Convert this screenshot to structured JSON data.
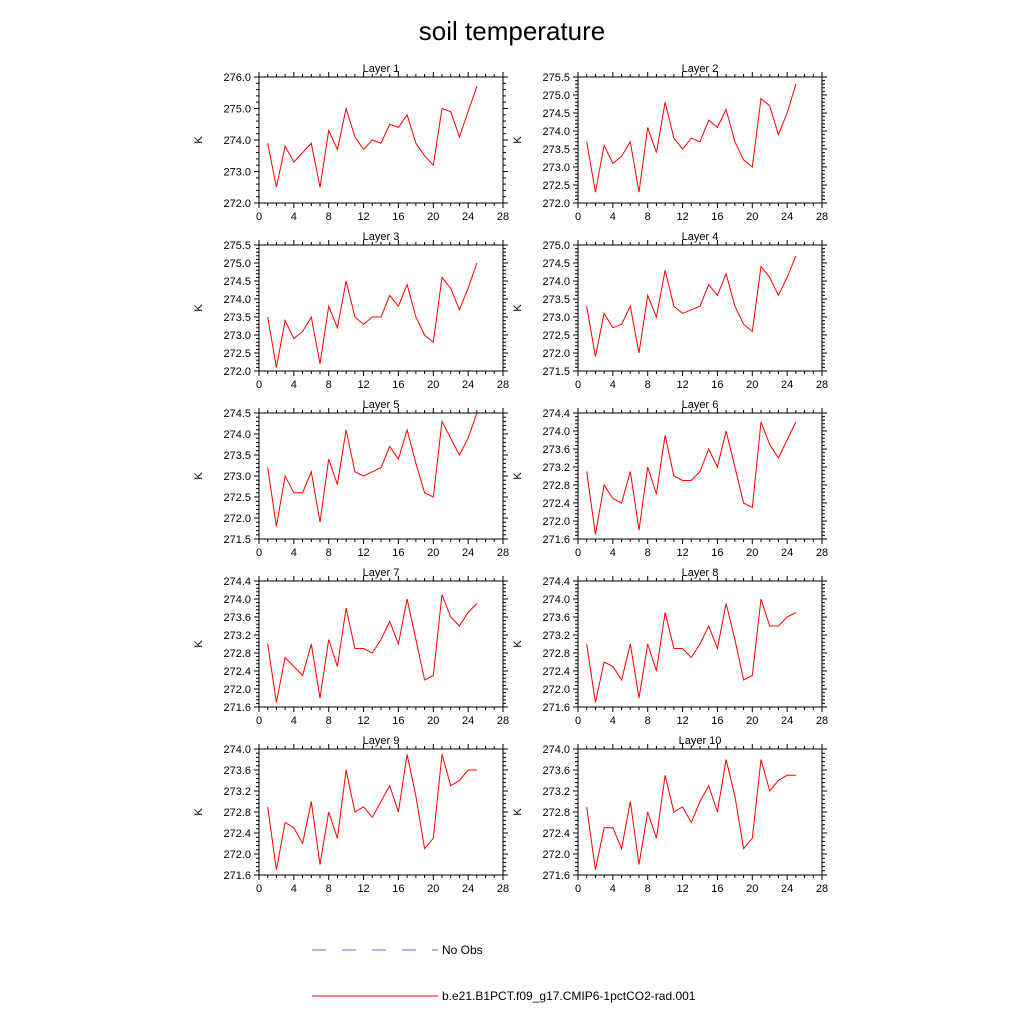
{
  "title": "soil temperature",
  "legend": {
    "placement": "bottom",
    "items": [
      {
        "label": "No Obs",
        "color": "#6b6bd6",
        "style": "dashed"
      },
      {
        "label": "b.e21.B1PCT.f09_g17.CMIP6-1pctCO2-rad.001",
        "color": "#ff0000",
        "style": "solid"
      }
    ]
  },
  "colors": {
    "series": "#ff0000",
    "no_obs": "#6b6bd6"
  },
  "chart_data": [
    {
      "type": "line",
      "title": "Layer 1",
      "ylabel": "K",
      "xlim": [
        0,
        28
      ],
      "ylim": [
        272.0,
        276.0
      ],
      "xticks": [
        0,
        4,
        8,
        12,
        16,
        20,
        24,
        28
      ],
      "yticks": [
        272.0,
        273.0,
        274.0,
        275.0,
        276.0
      ],
      "yfmt": 1,
      "series": [
        {
          "name": "b.e21.B1PCT.f09_g17.CMIP6-1pctCO2-rad.001",
          "x": [
            1,
            2,
            3,
            4,
            5,
            6,
            7,
            8,
            9,
            10,
            11,
            12,
            13,
            14,
            15,
            16,
            17,
            18,
            19,
            20,
            21,
            22,
            23,
            24,
            25
          ],
          "y": [
            273.9,
            272.5,
            273.8,
            273.3,
            273.6,
            273.9,
            272.5,
            274.3,
            273.7,
            275.0,
            274.1,
            273.7,
            274.0,
            273.9,
            274.5,
            274.4,
            274.8,
            273.9,
            273.5,
            273.2,
            275.0,
            274.9,
            274.1,
            274.9,
            275.7
          ]
        }
      ]
    },
    {
      "type": "line",
      "title": "Layer 2",
      "ylabel": "K",
      "xlim": [
        0,
        28
      ],
      "ylim": [
        272.0,
        275.5
      ],
      "xticks": [
        0,
        4,
        8,
        12,
        16,
        20,
        24,
        28
      ],
      "yticks": [
        272.0,
        272.5,
        273.0,
        273.5,
        274.0,
        274.5,
        275.0,
        275.5
      ],
      "yfmt": 1,
      "series": [
        {
          "name": "b.e21.B1PCT.f09_g17.CMIP6-1pctCO2-rad.001",
          "x": [
            1,
            2,
            3,
            4,
            5,
            6,
            7,
            8,
            9,
            10,
            11,
            12,
            13,
            14,
            15,
            16,
            17,
            18,
            19,
            20,
            21,
            22,
            23,
            24,
            25
          ],
          "y": [
            273.7,
            272.3,
            273.6,
            273.1,
            273.3,
            273.7,
            272.3,
            274.1,
            273.4,
            274.8,
            273.8,
            273.5,
            273.8,
            273.7,
            274.3,
            274.1,
            274.6,
            273.7,
            273.2,
            273.0,
            274.9,
            274.7,
            273.9,
            274.5,
            275.3
          ]
        }
      ]
    },
    {
      "type": "line",
      "title": "Layer 3",
      "ylabel": "K",
      "xlim": [
        0,
        28
      ],
      "ylim": [
        272.0,
        275.5
      ],
      "xticks": [
        0,
        4,
        8,
        12,
        16,
        20,
        24,
        28
      ],
      "yticks": [
        272.0,
        272.5,
        273.0,
        273.5,
        274.0,
        274.5,
        275.0,
        275.5
      ],
      "yfmt": 1,
      "series": [
        {
          "name": "b.e21.B1PCT.f09_g17.CMIP6-1pctCO2-rad.001",
          "x": [
            1,
            2,
            3,
            4,
            5,
            6,
            7,
            8,
            9,
            10,
            11,
            12,
            13,
            14,
            15,
            16,
            17,
            18,
            19,
            20,
            21,
            22,
            23,
            24,
            25
          ],
          "y": [
            273.5,
            272.1,
            273.4,
            272.9,
            273.1,
            273.5,
            272.2,
            273.8,
            273.2,
            274.5,
            273.5,
            273.3,
            273.5,
            273.5,
            274.1,
            273.8,
            274.4,
            273.5,
            273.0,
            272.8,
            274.6,
            274.3,
            273.7,
            274.3,
            275.0
          ]
        }
      ]
    },
    {
      "type": "line",
      "title": "Layer 4",
      "ylabel": "K",
      "xlim": [
        0,
        28
      ],
      "ylim": [
        271.5,
        275.0
      ],
      "xticks": [
        0,
        4,
        8,
        12,
        16,
        20,
        24,
        28
      ],
      "yticks": [
        271.5,
        272.0,
        272.5,
        273.0,
        273.5,
        274.0,
        274.5,
        275.0
      ],
      "yfmt": 1,
      "series": [
        {
          "name": "b.e21.B1PCT.f09_g17.CMIP6-1pctCO2-rad.001",
          "x": [
            1,
            2,
            3,
            4,
            5,
            6,
            7,
            8,
            9,
            10,
            11,
            12,
            13,
            14,
            15,
            16,
            17,
            18,
            19,
            20,
            21,
            22,
            23,
            24,
            25
          ],
          "y": [
            273.3,
            271.9,
            273.1,
            272.7,
            272.8,
            273.3,
            272.0,
            273.6,
            273.0,
            274.3,
            273.3,
            273.1,
            273.2,
            273.3,
            273.9,
            273.6,
            274.2,
            273.3,
            272.8,
            272.6,
            274.4,
            274.1,
            273.6,
            274.1,
            274.7
          ]
        }
      ]
    },
    {
      "type": "line",
      "title": "Layer 5",
      "ylabel": "K",
      "xlim": [
        0,
        28
      ],
      "ylim": [
        271.5,
        274.5
      ],
      "xticks": [
        0,
        4,
        8,
        12,
        16,
        20,
        24,
        28
      ],
      "yticks": [
        271.5,
        272.0,
        272.5,
        273.0,
        273.5,
        274.0,
        274.5
      ],
      "yfmt": 1,
      "series": [
        {
          "name": "b.e21.B1PCT.f09_g17.CMIP6-1pctCO2-rad.001",
          "x": [
            1,
            2,
            3,
            4,
            5,
            6,
            7,
            8,
            9,
            10,
            11,
            12,
            13,
            14,
            15,
            16,
            17,
            18,
            19,
            20,
            21,
            22,
            23,
            24,
            25
          ],
          "y": [
            273.2,
            271.8,
            273.0,
            272.6,
            272.6,
            273.1,
            271.9,
            273.4,
            272.8,
            274.1,
            273.1,
            273.0,
            273.1,
            273.2,
            273.7,
            273.4,
            274.1,
            273.3,
            272.6,
            272.5,
            274.3,
            273.9,
            273.5,
            273.9,
            274.5
          ]
        }
      ]
    },
    {
      "type": "line",
      "title": "Layer 6",
      "ylabel": "K",
      "xlim": [
        0,
        28
      ],
      "ylim": [
        271.6,
        274.4
      ],
      "xticks": [
        0,
        4,
        8,
        12,
        16,
        20,
        24,
        28
      ],
      "yticks": [
        271.6,
        272.0,
        272.4,
        272.8,
        273.2,
        273.6,
        274.0,
        274.4
      ],
      "yfmt": 1,
      "series": [
        {
          "name": "b.e21.B1PCT.f09_g17.CMIP6-1pctCO2-rad.001",
          "x": [
            1,
            2,
            3,
            4,
            5,
            6,
            7,
            8,
            9,
            10,
            11,
            12,
            13,
            14,
            15,
            16,
            17,
            18,
            19,
            20,
            21,
            22,
            23,
            24,
            25
          ],
          "y": [
            273.1,
            271.7,
            272.8,
            272.5,
            272.4,
            273.1,
            271.8,
            273.2,
            272.6,
            273.9,
            273.0,
            272.9,
            272.9,
            273.1,
            273.6,
            273.2,
            274.0,
            273.2,
            272.4,
            272.3,
            274.2,
            273.7,
            273.4,
            273.8,
            274.2
          ]
        }
      ]
    },
    {
      "type": "line",
      "title": "Layer 7",
      "ylabel": "K",
      "xlim": [
        0,
        28
      ],
      "ylim": [
        271.6,
        274.4
      ],
      "xticks": [
        0,
        4,
        8,
        12,
        16,
        20,
        24,
        28
      ],
      "yticks": [
        271.6,
        272.0,
        272.4,
        272.8,
        273.2,
        273.6,
        274.0,
        274.4
      ],
      "yfmt": 1,
      "series": [
        {
          "name": "b.e21.B1PCT.f09_g17.CMIP6-1pctCO2-rad.001",
          "x": [
            1,
            2,
            3,
            4,
            5,
            6,
            7,
            8,
            9,
            10,
            11,
            12,
            13,
            14,
            15,
            16,
            17,
            18,
            19,
            20,
            21,
            22,
            23,
            24,
            25
          ],
          "y": [
            273.0,
            271.7,
            272.7,
            272.5,
            272.3,
            273.0,
            271.8,
            273.1,
            272.5,
            273.8,
            272.9,
            272.9,
            272.8,
            273.1,
            273.5,
            273.0,
            274.0,
            273.1,
            272.2,
            272.3,
            274.1,
            273.6,
            273.4,
            273.7,
            273.9
          ]
        }
      ]
    },
    {
      "type": "line",
      "title": "Layer 8",
      "ylabel": "K",
      "xlim": [
        0,
        28
      ],
      "ylim": [
        271.6,
        274.4
      ],
      "xticks": [
        0,
        4,
        8,
        12,
        16,
        20,
        24,
        28
      ],
      "yticks": [
        271.6,
        272.0,
        272.4,
        272.8,
        273.2,
        273.6,
        274.0,
        274.4
      ],
      "yfmt": 1,
      "series": [
        {
          "name": "b.e21.B1PCT.f09_g17.CMIP6-1pctCO2-rad.001",
          "x": [
            1,
            2,
            3,
            4,
            5,
            6,
            7,
            8,
            9,
            10,
            11,
            12,
            13,
            14,
            15,
            16,
            17,
            18,
            19,
            20,
            21,
            22,
            23,
            24,
            25
          ],
          "y": [
            273.0,
            271.7,
            272.6,
            272.5,
            272.2,
            273.0,
            271.8,
            273.0,
            272.4,
            273.7,
            272.9,
            272.9,
            272.7,
            273.0,
            273.4,
            272.9,
            273.9,
            273.1,
            272.2,
            272.3,
            274.0,
            273.4,
            273.4,
            273.6,
            273.7
          ]
        }
      ]
    },
    {
      "type": "line",
      "title": "Layer 9",
      "ylabel": "K",
      "xlim": [
        0,
        28
      ],
      "ylim": [
        271.6,
        274.0
      ],
      "xticks": [
        0,
        4,
        8,
        12,
        16,
        20,
        24,
        28
      ],
      "yticks": [
        271.6,
        272.0,
        272.4,
        272.8,
        273.2,
        273.6,
        274.0
      ],
      "yfmt": 1,
      "series": [
        {
          "name": "b.e21.B1PCT.f09_g17.CMIP6-1pctCO2-rad.001",
          "x": [
            1,
            2,
            3,
            4,
            5,
            6,
            7,
            8,
            9,
            10,
            11,
            12,
            13,
            14,
            15,
            16,
            17,
            18,
            19,
            20,
            21,
            22,
            23,
            24,
            25
          ],
          "y": [
            272.9,
            271.7,
            272.6,
            272.5,
            272.2,
            273.0,
            271.8,
            272.8,
            272.3,
            273.6,
            272.8,
            272.9,
            272.7,
            273.0,
            273.3,
            272.8,
            273.9,
            273.1,
            272.1,
            272.3,
            273.9,
            273.3,
            273.4,
            273.6,
            273.6
          ]
        }
      ]
    },
    {
      "type": "line",
      "title": "Layer 10",
      "ylabel": "K",
      "xlim": [
        0,
        28
      ],
      "ylim": [
        271.6,
        274.0
      ],
      "xticks": [
        0,
        4,
        8,
        12,
        16,
        20,
        24,
        28
      ],
      "yticks": [
        271.6,
        272.0,
        272.4,
        272.8,
        273.2,
        273.6,
        274.0
      ],
      "yfmt": 1,
      "series": [
        {
          "name": "b.e21.B1PCT.f09_g17.CMIP6-1pctCO2-rad.001",
          "x": [
            1,
            2,
            3,
            4,
            5,
            6,
            7,
            8,
            9,
            10,
            11,
            12,
            13,
            14,
            15,
            16,
            17,
            18,
            19,
            20,
            21,
            22,
            23,
            24,
            25
          ],
          "y": [
            272.9,
            271.7,
            272.5,
            272.5,
            272.1,
            273.0,
            271.8,
            272.8,
            272.3,
            273.5,
            272.8,
            272.9,
            272.6,
            273.0,
            273.3,
            272.8,
            273.8,
            273.1,
            272.1,
            272.3,
            273.8,
            273.2,
            273.4,
            273.5,
            273.5
          ]
        }
      ]
    }
  ]
}
